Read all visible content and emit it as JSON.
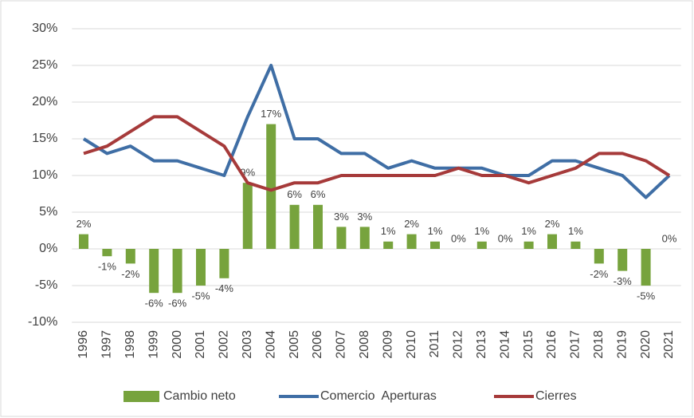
{
  "chart_data": {
    "type": "bar-line",
    "categories": [
      "1996",
      "1997",
      "1998",
      "1999",
      "2000",
      "2001",
      "2002",
      "2003",
      "2004",
      "2005",
      "2006",
      "2007",
      "2008",
      "2009",
      "2010",
      "2011",
      "2012",
      "2013",
      "2014",
      "2015",
      "2016",
      "2017",
      "2018",
      "2019",
      "2020",
      "2021"
    ],
    "series": [
      {
        "name": "Cambio neto",
        "type": "bar",
        "color": "#77a33d",
        "values": [
          2,
          -1,
          -2,
          -6,
          -6,
          -5,
          -4,
          9,
          17,
          6,
          6,
          3,
          3,
          1,
          2,
          1,
          0,
          1,
          0,
          1,
          2,
          1,
          -2,
          -3,
          -5,
          0
        ],
        "value_labels": [
          "2%",
          "-1%",
          "-2%",
          "-6%",
          "-6%",
          "-5%",
          "-4%",
          "9%",
          "17%",
          "6%",
          "6%",
          "3%",
          "3%",
          "1%",
          "2%",
          "1%",
          "0%",
          "1%",
          "0%",
          "1%",
          "2%",
          "1%",
          "-2%",
          "-3%",
          "-5%",
          "0%"
        ]
      },
      {
        "name": "Comercio  Aperturas",
        "type": "line",
        "color": "#3f6ea5",
        "values": [
          15,
          13,
          14,
          12,
          12,
          11,
          10,
          18,
          25,
          15,
          15,
          13,
          13,
          11,
          12,
          11,
          11,
          11,
          10,
          10,
          12,
          12,
          11,
          10,
          7,
          10
        ]
      },
      {
        "name": "Cierres",
        "type": "line",
        "color": "#a63a3a",
        "values": [
          13,
          14,
          16,
          18,
          18,
          16,
          14,
          9,
          8,
          9,
          9,
          10,
          10,
          10,
          10,
          10,
          11,
          10,
          10,
          9,
          10,
          11,
          13,
          13,
          12,
          10
        ]
      }
    ],
    "ylim": [
      -10,
      30
    ],
    "yticks": [
      {
        "value": -10,
        "label": "-10%"
      },
      {
        "value": -5,
        "label": "-5%"
      },
      {
        "value": 0,
        "label": "0%"
      },
      {
        "value": 5,
        "label": "5%"
      },
      {
        "value": 10,
        "label": "10%"
      },
      {
        "value": 15,
        "label": "15%"
      },
      {
        "value": 20,
        "label": "20%"
      },
      {
        "value": 25,
        "label": "25%"
      },
      {
        "value": 30,
        "label": "30%"
      }
    ],
    "grid": true,
    "legend": "bottom"
  }
}
